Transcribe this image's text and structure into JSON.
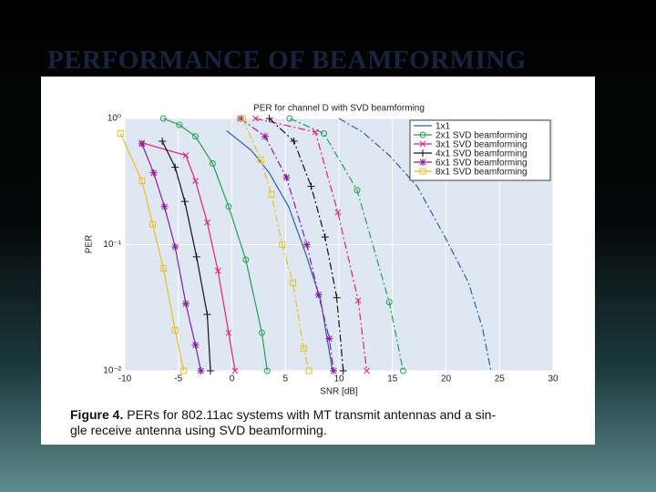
{
  "slide_title": "PERFORMANCE OF BEAMFORMING",
  "figure_label": "Figure 4.",
  "caption": [
    "PERs for 802.11ac systems with MT transmit antennas and a sin-",
    "gle receive antenna using SVD beamforming."
  ],
  "chart_data": {
    "type": "line",
    "title": "PER for channel D with SVD beamforming",
    "x_label": "SNR [dB]",
    "y_label": "PER",
    "xlim": [
      -10,
      30
    ],
    "xticks": [
      -10,
      -5,
      0,
      5,
      10,
      15,
      20,
      25,
      30
    ],
    "ylim": [
      0.01,
      1
    ],
    "ylog": true,
    "yticks": [
      {
        "value": 0.01,
        "label": "10⁻²"
      },
      {
        "value": 0.1,
        "label": "10⁻¹"
      },
      {
        "value": 1,
        "label": "10⁰"
      }
    ],
    "grid": true,
    "legend": "upper right",
    "series": [
      {
        "name": "1x1",
        "color": "#2a5fb0",
        "marker": null,
        "x": [
          -0.5,
          1.8,
          3.5,
          5.3,
          7,
          8.3,
          9.4
        ],
        "values": [
          0.8,
          0.56,
          0.37,
          0.2,
          0.08,
          0.036,
          0.01
        ],
        "x2": [
          10,
          12.2,
          14.7,
          17.3,
          19.9,
          22.1,
          23.4,
          24.2
        ],
        "values2": [
          1,
          0.78,
          0.51,
          0.29,
          0.115,
          0.05,
          0.022,
          0.01
        ]
      },
      {
        "name": "2x1 SVD beamforming",
        "color": "#22a050",
        "marker": "o",
        "x": [
          -6.4,
          -4.9,
          -3.4,
          -1.8,
          -0.3,
          1.3,
          2.8,
          3.3
        ],
        "values": [
          1,
          0.89,
          0.72,
          0.44,
          0.2,
          0.076,
          0.02,
          0.01
        ],
        "x2": [
          5.4,
          8.6,
          11.7,
          14.7,
          16
        ],
        "values2": [
          1,
          0.76,
          0.27,
          0.035,
          0.01
        ]
      },
      {
        "name": "3x1 SVD beamforming",
        "color": "#e0207a",
        "marker": "x",
        "x": [
          -8.4,
          -4.3,
          -3.4,
          -2.3,
          -1.3,
          -0.3,
          0.3
        ],
        "values": [
          0.64,
          0.51,
          0.32,
          0.15,
          0.062,
          0.02,
          0.01
        ],
        "x2": [
          2.2,
          7.8,
          9.9,
          11.8,
          12.6
        ],
        "values2": [
          1,
          0.78,
          0.18,
          0.036,
          0.01
        ]
      },
      {
        "name": "4x1 SVD beamforming",
        "color": "#111111",
        "marker": "+",
        "x": [
          -6.5,
          -5.3,
          -4.4,
          -3.3,
          -2.3,
          -2
        ],
        "values": [
          0.66,
          0.41,
          0.22,
          0.08,
          0.028,
          0.01
        ],
        "x2": [
          3.5,
          5.8,
          7.4,
          8.7,
          9.8,
          10.4
        ],
        "values2": [
          1,
          0.66,
          0.29,
          0.115,
          0.038,
          0.01
        ]
      },
      {
        "name": "6x1 SVD beamforming",
        "color": "#8a1aa0",
        "marker": "*",
        "x": [
          -8.4,
          -7.3,
          -6.3,
          -5.3,
          -4.3,
          -3.4,
          -2.9
        ],
        "values": [
          0.63,
          0.37,
          0.2,
          0.096,
          0.034,
          0.016,
          0.01
        ],
        "x2": [
          0.8,
          3.1,
          5.1,
          7,
          8.1,
          9.1,
          9.5
        ],
        "values2": [
          1,
          0.72,
          0.34,
          0.1,
          0.04,
          0.018,
          0.01
        ]
      },
      {
        "name": "8x1 SVD beamforming",
        "color": "#e8c020",
        "marker": "s",
        "x": [
          -10.4,
          -8.4,
          -7.4,
          -6.4,
          -5.3,
          -4.5
        ],
        "values": [
          0.76,
          0.32,
          0.145,
          0.065,
          0.021,
          0.01
        ],
        "x2": [
          1,
          2.7,
          3.7,
          4.7,
          5.7,
          6.7,
          7.2
        ],
        "values2": [
          1,
          0.47,
          0.25,
          0.1,
          0.05,
          0.015,
          0.01
        ]
      }
    ]
  }
}
